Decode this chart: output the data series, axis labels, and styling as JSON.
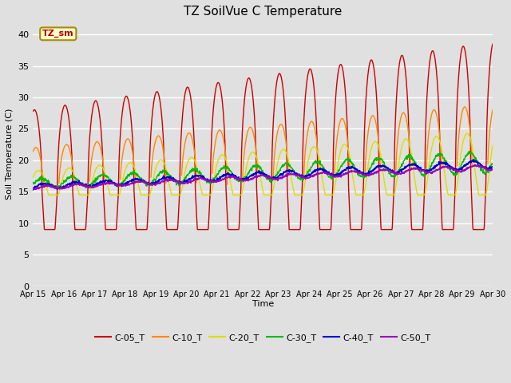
{
  "title": "TZ SoilVue C Temperature",
  "xlabel": "Time",
  "ylabel": "Soil Temperature (C)",
  "ylim": [
    0,
    42
  ],
  "yticks": [
    0,
    5,
    10,
    15,
    20,
    25,
    30,
    35,
    40
  ],
  "bg_color": "#e0e0e0",
  "legend_label": "TZ_sm",
  "legend_bg": "#ffffcc",
  "legend_border": "#aa8800",
  "x_tick_labels": [
    "Apr 15",
    "Apr 16",
    "Apr 17",
    "Apr 18",
    "Apr 19",
    "Apr 20",
    "Apr 21",
    "Apr 22",
    "Apr 23",
    "Apr 24",
    "Apr 25",
    "Apr 26",
    "Apr 27",
    "Apr 28",
    "Apr 29",
    "Apr 30"
  ],
  "series_names": [
    "C-05_T",
    "C-10_T",
    "C-20_T",
    "C-30_T",
    "C-40_T",
    "C-50_T"
  ],
  "series_colors": [
    "#cc0000",
    "#ff8800",
    "#dddd00",
    "#00bb00",
    "#0000cc",
    "#9900bb"
  ],
  "series_lw": [
    1.0,
    1.0,
    1.0,
    1.0,
    1.2,
    1.2
  ]
}
